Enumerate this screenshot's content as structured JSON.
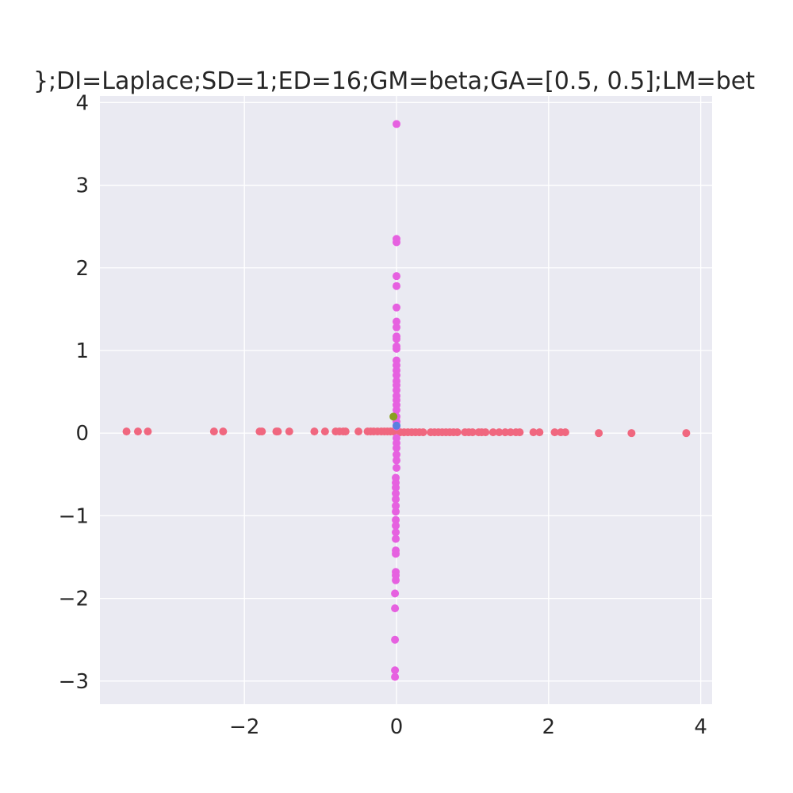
{
  "chart_data": {
    "type": "scatter",
    "title": "};DI=Laplace;SD=1;ED=16;GM=beta;GA=[0.5, 0.5];LM=bet",
    "xlabel": "",
    "ylabel": "",
    "xlim": [
      -3.9,
      4.15
    ],
    "ylim": [
      -3.28,
      4.08
    ],
    "grid": true,
    "x_ticks": [
      -2,
      0,
      2,
      4
    ],
    "y_ticks": [
      -3,
      -2,
      -1,
      0,
      1,
      2,
      3,
      4
    ],
    "x_tick_labels": [
      "−2",
      "0",
      "2",
      "4"
    ],
    "y_tick_labels": [
      "−3",
      "−2",
      "−1",
      "0",
      "1",
      "2",
      "3",
      "4"
    ],
    "series": [
      {
        "color": "#f0677f",
        "points": [
          [
            -3.55,
            0.02
          ],
          [
            -3.4,
            0.02
          ],
          [
            -3.27,
            0.02
          ],
          [
            -2.4,
            0.02
          ],
          [
            -2.28,
            0.02
          ],
          [
            -1.8,
            0.02
          ],
          [
            -1.77,
            0.02
          ],
          [
            -1.58,
            0.02
          ],
          [
            -1.56,
            0.02
          ],
          [
            -1.41,
            0.02
          ],
          [
            -1.08,
            0.02
          ],
          [
            -0.94,
            0.02
          ],
          [
            -0.8,
            0.02
          ],
          [
            -0.75,
            0.02
          ],
          [
            -0.7,
            0.02
          ],
          [
            -0.67,
            0.02
          ],
          [
            -0.5,
            0.02
          ],
          [
            -0.38,
            0.02
          ],
          [
            -0.34,
            0.02
          ],
          [
            -0.3,
            0.02
          ],
          [
            -0.25,
            0.02
          ],
          [
            -0.2,
            0.02
          ],
          [
            -0.16,
            0.02
          ],
          [
            -0.12,
            0.02
          ],
          [
            -0.08,
            0.02
          ],
          [
            -0.04,
            0.02
          ],
          [
            0.05,
            0.01
          ],
          [
            0.1,
            0.01
          ],
          [
            0.15,
            0.01
          ],
          [
            0.2,
            0.01
          ],
          [
            0.25,
            0.01
          ],
          [
            0.3,
            0.01
          ],
          [
            0.35,
            0.01
          ],
          [
            0.45,
            0.01
          ],
          [
            0.5,
            0.01
          ],
          [
            0.55,
            0.01
          ],
          [
            0.6,
            0.01
          ],
          [
            0.65,
            0.01
          ],
          [
            0.7,
            0.01
          ],
          [
            0.75,
            0.01
          ],
          [
            0.8,
            0.01
          ],
          [
            0.9,
            0.01
          ],
          [
            0.95,
            0.01
          ],
          [
            1.0,
            0.01
          ],
          [
            1.08,
            0.01
          ],
          [
            1.12,
            0.01
          ],
          [
            1.17,
            0.01
          ],
          [
            1.27,
            0.01
          ],
          [
            1.35,
            0.01
          ],
          [
            1.43,
            0.01
          ],
          [
            1.5,
            0.01
          ],
          [
            1.57,
            0.01
          ],
          [
            1.62,
            0.01
          ],
          [
            1.8,
            0.01
          ],
          [
            1.88,
            0.01
          ],
          [
            2.08,
            0.01
          ],
          [
            2.16,
            0.01
          ],
          [
            2.22,
            0.01
          ],
          [
            2.66,
            0.0
          ],
          [
            3.09,
            0.0
          ],
          [
            3.81,
            0.0
          ]
        ]
      },
      {
        "color": "#e661e0",
        "points": [
          [
            0.0,
            3.74
          ],
          [
            0.0,
            2.35
          ],
          [
            0.0,
            2.31
          ],
          [
            0.0,
            1.9
          ],
          [
            0.0,
            1.78
          ],
          [
            0.0,
            1.52
          ],
          [
            0.0,
            1.35
          ],
          [
            0.0,
            1.28
          ],
          [
            0.0,
            1.17
          ],
          [
            0.0,
            1.14
          ],
          [
            0.0,
            1.05
          ],
          [
            0.0,
            1.02
          ],
          [
            0.0,
            0.88
          ],
          [
            0.0,
            0.82
          ],
          [
            0.0,
            0.76
          ],
          [
            0.0,
            0.7
          ],
          [
            0.0,
            0.63
          ],
          [
            0.0,
            0.58
          ],
          [
            0.0,
            0.52
          ],
          [
            0.0,
            0.45
          ],
          [
            0.0,
            0.4
          ],
          [
            0.0,
            0.34
          ],
          [
            0.0,
            0.28
          ],
          [
            0.0,
            0.2
          ],
          [
            0.0,
            0.14
          ],
          [
            0.0,
            0.08
          ],
          [
            0.0,
            -0.06
          ],
          [
            0.0,
            -0.12
          ],
          [
            0.0,
            -0.18
          ],
          [
            0.0,
            -0.26
          ],
          [
            0.0,
            -0.33
          ],
          [
            0.0,
            -0.42
          ],
          [
            -0.01,
            -0.54
          ],
          [
            -0.01,
            -0.6
          ],
          [
            -0.01,
            -0.66
          ],
          [
            -0.01,
            -0.73
          ],
          [
            -0.01,
            -0.8
          ],
          [
            -0.01,
            -0.88
          ],
          [
            -0.01,
            -0.95
          ],
          [
            -0.01,
            -1.05
          ],
          [
            -0.01,
            -1.12
          ],
          [
            -0.01,
            -1.2
          ],
          [
            -0.01,
            -1.28
          ],
          [
            -0.01,
            -1.42
          ],
          [
            -0.01,
            -1.46
          ],
          [
            -0.01,
            -1.68
          ],
          [
            -0.01,
            -1.72
          ],
          [
            -0.01,
            -1.78
          ],
          [
            -0.02,
            -1.94
          ],
          [
            -0.02,
            -2.12
          ],
          [
            -0.02,
            -2.5
          ],
          [
            -0.02,
            -2.87
          ],
          [
            -0.02,
            -2.95
          ]
        ]
      },
      {
        "color": "#8aa020",
        "points": [
          [
            -0.04,
            0.2
          ]
        ]
      },
      {
        "color": "#5a7fe0",
        "points": [
          [
            0.0,
            0.09
          ]
        ]
      }
    ]
  }
}
